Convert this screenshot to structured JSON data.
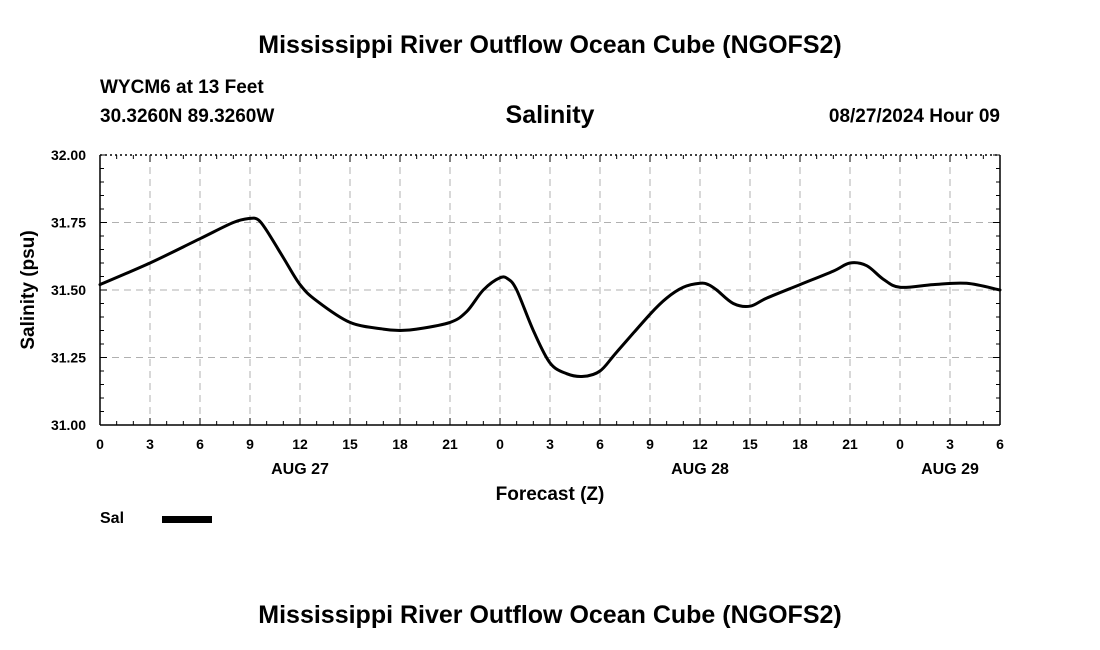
{
  "header": {
    "title": "Mississippi River Outflow Ocean Cube (NGOFS2)",
    "station": "WYCM6 at 13 Feet",
    "coords": "30.3260N  89.3260W",
    "subtitle": "Salinity",
    "datetime": "08/27/2024 Hour 09"
  },
  "footer": {
    "title": "Mississippi River Outflow Ocean Cube (NGOFS2)"
  },
  "legend": {
    "label": "Sal",
    "color": "#000000"
  },
  "chart_data": {
    "type": "line",
    "title": "Salinity",
    "xlabel": "Forecast (Z)",
    "ylabel": "Salinity (psu)",
    "xlim": [
      0,
      54
    ],
    "ylim": [
      31.0,
      32.0
    ],
    "x_ticks": [
      0,
      3,
      6,
      9,
      12,
      15,
      18,
      21,
      24,
      27,
      30,
      33,
      36,
      39,
      42,
      45,
      48,
      51,
      54
    ],
    "x_tick_labels": [
      "0",
      "3",
      "6",
      "9",
      "12",
      "15",
      "18",
      "21",
      "0",
      "3",
      "6",
      "9",
      "12",
      "15",
      "18",
      "21",
      "0",
      "3",
      "6"
    ],
    "y_ticks": [
      31.0,
      31.25,
      31.5,
      31.75,
      32.0
    ],
    "y_tick_labels": [
      "31.00",
      "31.25",
      "31.50",
      "31.75",
      "32.00"
    ],
    "day_labels": [
      {
        "x": 12,
        "label": "AUG 27"
      },
      {
        "x": 36,
        "label": "AUG 28"
      },
      {
        "x": 51,
        "label": "AUG 29"
      }
    ],
    "grid": true,
    "series": [
      {
        "name": "Sal",
        "color": "#000000",
        "x": [
          0,
          3,
          6,
          8,
          9,
          9.5,
          10,
          11,
          12,
          13,
          15,
          17,
          18,
          19,
          21,
          22,
          23,
          24,
          24.5,
          25,
          26,
          27,
          28,
          29,
          30,
          31,
          33,
          34,
          35,
          36,
          36.5,
          37,
          38,
          39,
          40,
          42,
          44,
          45,
          46,
          47,
          48,
          50,
          52,
          54
        ],
        "y": [
          31.52,
          31.6,
          31.69,
          31.75,
          31.765,
          31.76,
          31.72,
          31.62,
          31.52,
          31.46,
          31.38,
          31.355,
          31.35,
          31.355,
          31.38,
          31.42,
          31.5,
          31.545,
          31.54,
          31.5,
          31.35,
          31.23,
          31.19,
          31.18,
          31.2,
          31.27,
          31.41,
          31.47,
          31.51,
          31.525,
          31.52,
          31.5,
          31.45,
          31.44,
          31.47,
          31.52,
          31.57,
          31.6,
          31.59,
          31.54,
          31.51,
          31.52,
          31.525,
          31.5
        ]
      }
    ]
  }
}
